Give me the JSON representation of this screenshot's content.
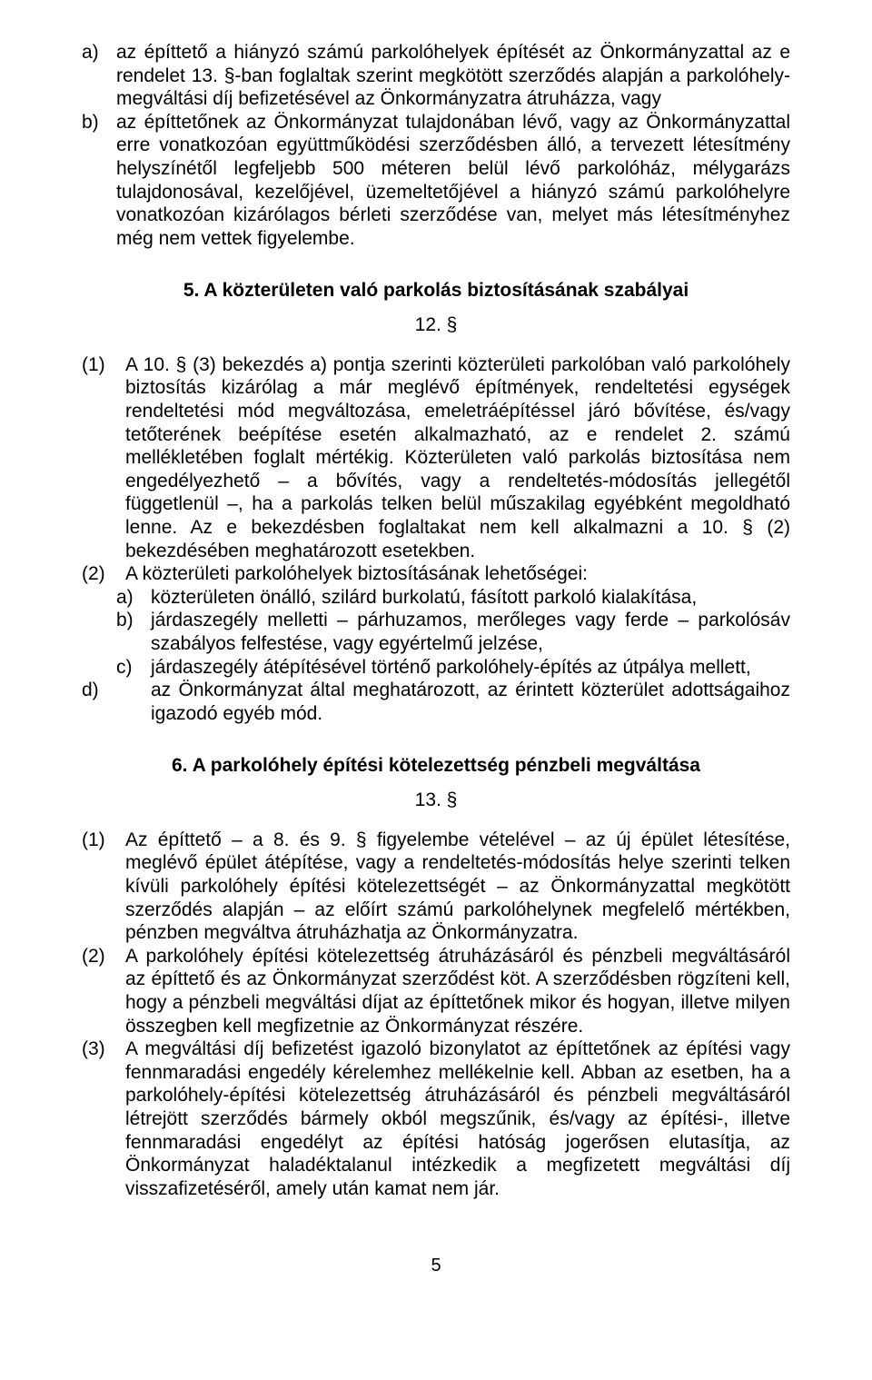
{
  "topList": {
    "a": {
      "marker": "a)",
      "text": "az építtető a hiányzó számú parkolóhelyek építését az Önkormányzattal az e rendelet 13. §-ban foglaltak szerint megkötött szerződés alapján a parkolóhely-megváltási díj befizetésével az Önkormányzatra átruházza, vagy"
    },
    "b": {
      "marker": "b)",
      "text": "az építtetőnek az Önkormányzat tulajdonában lévő, vagy az Önkormányzattal erre vonatkozóan együttműködési szerződésben álló, a tervezett létesítmény helyszínétől legfeljebb 500 méteren belül lévő parkolóház, mélygarázs tulajdonosával, kezelőjével, üzemeltetőjével a hiányzó számú parkolóhelyre vonatkozóan kizárólagos bérleti szerződése van, melyet más létesítményhez még nem vettek figyelembe."
    }
  },
  "heading5": "5. A közterületen való parkolás biztosításának szabályai",
  "sectionNum12": "12. §",
  "section12": {
    "p1": {
      "marker": "(1)",
      "text": "A 10. § (3) bekezdés a) pontja szerinti közterületi parkolóban való parkolóhely biztosítás kizárólag a már meglévő építmények, rendeltetési egységek rendeltetési mód megváltozása, emeletráépítéssel járó bővítése, és/vagy tetőterének beépítése esetén alkalmazható, az e rendelet 2. számú mellékletében foglalt mértékig. Közterületen való parkolás biztosítása nem engedélyezhető – a bővítés, vagy a rendeltetés-módosítás jellegétől függetlenül –, ha a parkolás telken belül műszakilag egyébként megoldható lenne. Az e bekezdésben foglaltakat nem kell alkalmazni a 10. § (2) bekezdésében meghatározott esetekben."
    },
    "p2": {
      "marker": "(2)",
      "text": "A közterületi parkolóhelyek biztosításának lehetőségei:"
    },
    "p2a": {
      "marker": "a)",
      "text": "közterületen önálló, szilárd burkolatú, fásított parkoló kialakítása,"
    },
    "p2b": {
      "marker": "b)",
      "text": "járdaszegély melletti – párhuzamos, merőleges vagy ferde – parkolósáv szabályos felfestése, vagy egyértelmű jelzése,"
    },
    "p2c": {
      "marker": "c)",
      "text": "járdaszegély átépítésével történő parkolóhely-építés az útpálya mellett,"
    },
    "p2d": {
      "marker": "d)",
      "text": "az Önkormányzat által meghatározott, az érintett közterület adottságaihoz igazodó egyéb mód."
    }
  },
  "heading6": "6. A parkolóhely építési kötelezettség pénzbeli megváltása",
  "sectionNum13": "13. §",
  "section13": {
    "p1": {
      "marker": "(1)",
      "text": "Az építtető – a 8. és 9. § figyelembe vételével – az új épület létesítése, meglévő épület átépítése, vagy a rendeltetés-módosítás helye szerinti telken kívüli parkolóhely építési kötelezettségét – az Önkormányzattal megkötött szerződés alapján – az előírt számú parkolóhelynek megfelelő mértékben, pénzben megváltva átruházhatja az Önkormányzatra."
    },
    "p2": {
      "marker": "(2)",
      "text": "A parkolóhely építési kötelezettség átruházásáról és pénzbeli megváltásáról az építtető és az Önkormányzat szerződést köt. A szerződésben rögzíteni kell, hogy a pénzbeli megváltási díjat az építtetőnek mikor és hogyan, illetve milyen összegben kell megfizetnie az Önkormányzat részére."
    },
    "p3": {
      "marker": "(3)",
      "text": "A megváltási díj befizetést igazoló bizonylatot az építtetőnek az építési vagy fennmaradási engedély kérelemhez mellékelnie kell. Abban az esetben, ha a parkolóhely-építési kötelezettség átruházásáról és pénzbeli megváltásáról létrejött szerződés bármely okból megszűnik, és/vagy az építési-, illetve fennmaradási engedélyt az építési hatóság jogerősen elutasítja, az Önkormányzat haladéktalanul intézkedik a megfizetett megváltási díj visszafizetéséről, amely után kamat nem jár."
    }
  },
  "pageNum": "5"
}
